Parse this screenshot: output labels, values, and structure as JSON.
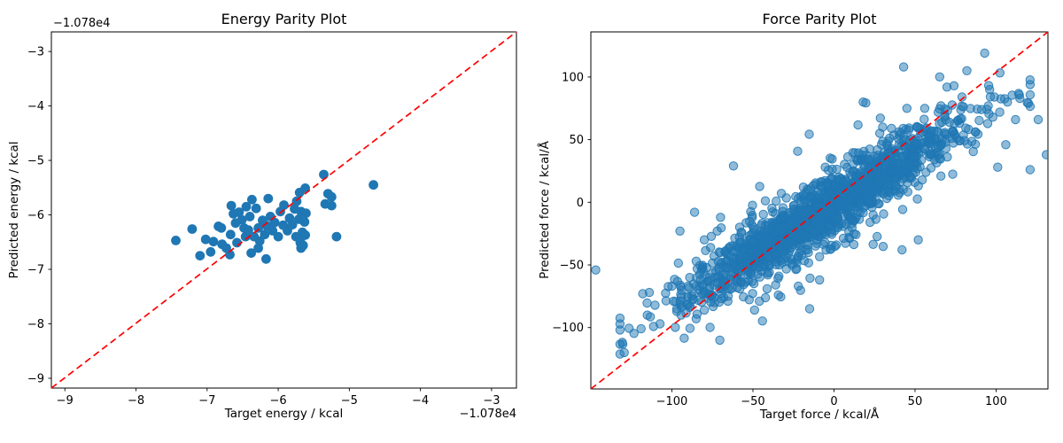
{
  "figure": {
    "background": "#ffffff",
    "point_color": "#1f77b4",
    "parity_line_color": "#ff0000",
    "text_color": "#000000"
  },
  "chart_data": [
    {
      "id": "energy",
      "type": "scatter",
      "title": "Energy Parity Plot",
      "xlabel": "Target energy / kcal",
      "ylabel": "Predicted energy / kcal",
      "x_axis_offset": "−1.078e4",
      "y_axis_offset": "−1.078e4",
      "axis_offset_value": -10780,
      "xlim": [
        -9.19,
        -2.65
      ],
      "ylim": [
        -9.18,
        -2.64
      ],
      "grid": false,
      "legend": "none",
      "parity_line": "y = x (red dashed)",
      "marker": {
        "radius": 5.4,
        "fill_opacity": 1.0,
        "edge": false
      },
      "xticks": [
        {
          "v": -9,
          "label": "−9"
        },
        {
          "v": -8,
          "label": "−8"
        },
        {
          "v": -7,
          "label": "−7"
        },
        {
          "v": -6,
          "label": "−6"
        },
        {
          "v": -5,
          "label": "−5"
        },
        {
          "v": -4,
          "label": "−4"
        },
        {
          "v": -3,
          "label": "−3"
        }
      ],
      "yticks": [
        {
          "v": -3,
          "label": "−3"
        },
        {
          "v": -4,
          "label": "−4"
        },
        {
          "v": -5,
          "label": "−5"
        },
        {
          "v": -6,
          "label": "−6"
        },
        {
          "v": -7,
          "label": "−7"
        },
        {
          "v": -8,
          "label": "−8"
        },
        {
          "v": -9,
          "label": "−9"
        }
      ],
      "points": [
        [
          -7.44,
          -6.47
        ],
        [
          -7.21,
          -6.26
        ],
        [
          -7.1,
          -6.75
        ],
        [
          -7.02,
          -6.45
        ],
        [
          -6.95,
          -6.68
        ],
        [
          -6.91,
          -6.49
        ],
        [
          -6.84,
          -6.21
        ],
        [
          -6.8,
          -6.24
        ],
        [
          -6.79,
          -6.54
        ],
        [
          -6.73,
          -6.61
        ],
        [
          -6.68,
          -6.73
        ],
        [
          -6.67,
          -6.36
        ],
        [
          -6.66,
          -5.83
        ],
        [
          -6.63,
          -5.98
        ],
        [
          -6.6,
          -6.15
        ],
        [
          -6.58,
          -6.51
        ],
        [
          -6.55,
          -5.95
        ],
        [
          -6.51,
          -6.09
        ],
        [
          -6.48,
          -6.24
        ],
        [
          -6.46,
          -6.4
        ],
        [
          -6.45,
          -5.85
        ],
        [
          -6.42,
          -6.28
        ],
        [
          -6.4,
          -6.03
        ],
        [
          -6.38,
          -6.7
        ],
        [
          -6.37,
          -5.72
        ],
        [
          -6.34,
          -6.4
        ],
        [
          -6.31,
          -5.88
        ],
        [
          -6.28,
          -6.24
        ],
        [
          -6.28,
          -6.61
        ],
        [
          -6.26,
          -6.48
        ],
        [
          -6.22,
          -6.1
        ],
        [
          -6.19,
          -6.36
        ],
        [
          -6.17,
          -6.81
        ],
        [
          -6.16,
          -6.2
        ],
        [
          -6.14,
          -5.7
        ],
        [
          -6.11,
          -6.03
        ],
        [
          -6.08,
          -6.29
        ],
        [
          -6.05,
          -6.14
        ],
        [
          -6.0,
          -6.4
        ],
        [
          -5.97,
          -5.94
        ],
        [
          -5.93,
          -6.19
        ],
        [
          -5.92,
          -5.82
        ],
        [
          -5.87,
          -6.29
        ],
        [
          -5.84,
          -6.06
        ],
        [
          -5.8,
          -6.18
        ],
        [
          -5.77,
          -5.89
        ],
        [
          -5.75,
          -6.4
        ],
        [
          -5.74,
          -5.75
        ],
        [
          -5.71,
          -6.08
        ],
        [
          -5.7,
          -5.59
        ],
        [
          -5.69,
          -6.51
        ],
        [
          -5.69,
          -6.45
        ],
        [
          -5.68,
          -5.94
        ],
        [
          -5.68,
          -6.61
        ],
        [
          -5.66,
          -6.32
        ],
        [
          -5.65,
          -6.56
        ],
        [
          -5.63,
          -6.13
        ],
        [
          -5.62,
          -5.51
        ],
        [
          -5.62,
          -6.37
        ],
        [
          -5.61,
          -5.97
        ],
        [
          -5.36,
          -5.26
        ],
        [
          -5.34,
          -5.8
        ],
        [
          -5.3,
          -5.61
        ],
        [
          -5.25,
          -5.67
        ],
        [
          -5.25,
          -5.83
        ],
        [
          -5.18,
          -6.4
        ],
        [
          -4.66,
          -5.45
        ]
      ]
    },
    {
      "id": "force",
      "type": "scatter",
      "title": "Force Parity Plot",
      "xlabel": "Target force / kcal/Å",
      "ylabel": "Predicted force / kcal/Å",
      "xlim": [
        -150,
        132
      ],
      "ylim": [
        -149,
        136
      ],
      "grid": false,
      "legend": "none",
      "parity_line": "y = x (red dashed)",
      "marker": {
        "radius": 4.7,
        "fill_opacity": 0.5,
        "edge": true
      },
      "xticks": [
        {
          "v": -100,
          "label": "−100"
        },
        {
          "v": -50,
          "label": "−50"
        },
        {
          "v": 0,
          "label": "0"
        },
        {
          "v": 50,
          "label": "50"
        },
        {
          "v": 100,
          "label": "100"
        }
      ],
      "yticks": [
        {
          "v": 100,
          "label": "100"
        },
        {
          "v": 50,
          "label": "50"
        },
        {
          "v": 0,
          "label": "0"
        },
        {
          "v": -50,
          "label": "−50"
        },
        {
          "v": -100,
          "label": "−100"
        }
      ],
      "points": [
        [
          -147,
          -54
        ],
        [
          -118,
          -73
        ],
        [
          -119,
          -101
        ],
        [
          -100,
          -67
        ],
        [
          -99,
          -79
        ],
        [
          -97,
          -85
        ],
        [
          -95,
          -23
        ],
        [
          -90,
          -67
        ],
        [
          -90,
          -75
        ],
        [
          -89,
          -60
        ],
        [
          -86,
          -8
        ],
        [
          -85,
          -47
        ],
        [
          -85,
          -67
        ],
        [
          -85,
          -93
        ],
        [
          -81,
          -73
        ],
        [
          -80,
          -86
        ],
        [
          -80,
          -30
        ],
        [
          -75,
          -74
        ],
        [
          -74,
          -43
        ],
        [
          -72,
          -23
        ],
        [
          -70,
          -12
        ],
        [
          -68,
          -63
        ],
        [
          -68,
          -76
        ],
        [
          -62,
          29
        ],
        [
          -62,
          -35
        ],
        [
          -58,
          -69
        ],
        [
          -53,
          -58
        ],
        [
          -49,
          -86
        ],
        [
          -46,
          -79
        ],
        [
          -40,
          -51
        ],
        [
          -36,
          -66
        ],
        [
          -34,
          -59
        ],
        [
          -23,
          -46
        ],
        [
          -23,
          -53
        ],
        [
          -22,
          -67
        ],
        [
          -15,
          -85
        ],
        [
          42,
          -38
        ],
        [
          52,
          -30
        ],
        [
          18,
          80
        ],
        [
          30,
          60
        ],
        [
          43,
          108
        ],
        [
          45,
          75
        ],
        [
          50,
          48
        ],
        [
          56,
          75
        ],
        [
          60,
          57
        ],
        [
          66,
          77
        ],
        [
          74,
          93
        ],
        [
          79,
          84
        ],
        [
          82,
          105
        ],
        [
          91,
          74
        ],
        [
          93,
          119
        ],
        [
          98,
          68
        ],
        [
          99,
          84
        ],
        [
          101,
          28
        ],
        [
          106,
          46
        ],
        [
          107,
          80
        ],
        [
          112,
          66
        ],
        [
          120,
          79
        ],
        [
          121,
          26
        ],
        [
          121,
          94
        ],
        [
          126,
          66
        ],
        [
          131,
          38
        ]
      ],
      "point_cloud": {
        "description": "dense correlated cloud along the diagonal, ~1700 pts",
        "seed": 7,
        "n": 1650,
        "x_mean": -6,
        "x_sigma": 42,
        "x_clip": [
          -132,
          121
        ],
        "slope": 0.8,
        "intercept": -1,
        "y_sigma": 11,
        "y_sigma_wide": 21,
        "wide_every": 5,
        "y_clip": [
          -140,
          128
        ]
      }
    }
  ]
}
